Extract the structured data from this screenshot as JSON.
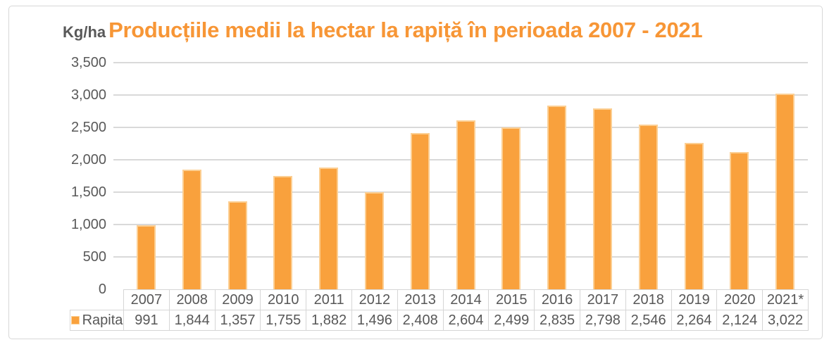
{
  "header": {
    "unit_label": "Kg/ha",
    "title": "Producțiile medii la hectar la rapiță în perioada 2007 - 2021"
  },
  "chart_data": {
    "type": "bar",
    "title": "Producțiile medii la hectar la rapiță în perioada 2007 - 2021",
    "ylabel": "Kg/ha",
    "xlabel": "",
    "categories": [
      "2007",
      "2008",
      "2009",
      "2010",
      "2011",
      "2012",
      "2013",
      "2014",
      "2015",
      "2016",
      "2017",
      "2018",
      "2019",
      "2020",
      "2021*"
    ],
    "series": [
      {
        "name": "Rapita",
        "values": [
          991,
          1844,
          1357,
          1755,
          1882,
          1496,
          2408,
          2604,
          2499,
          2835,
          2798,
          2546,
          2264,
          2124,
          3022
        ]
      }
    ],
    "ylim": [
      0,
      3500
    ],
    "ytick_step": 500,
    "grid": true,
    "legend_position": "bottom-table",
    "colors": {
      "bar_fill": "#F9A13D",
      "bar_border": "#FCCF93",
      "title": "#F79636",
      "axis_text": "#595959",
      "gridline": "#D9D9D9",
      "table_border": "#D6D6D6"
    }
  }
}
